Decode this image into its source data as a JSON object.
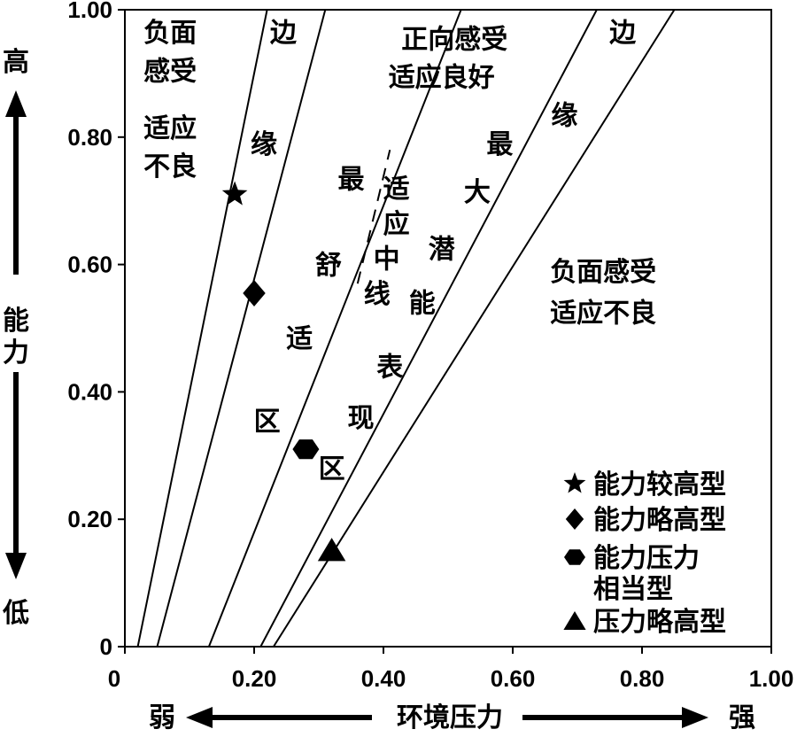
{
  "chart_data": {
    "type": "scatter",
    "xlim": [
      0,
      1.0
    ],
    "ylim": [
      0,
      1.0
    ],
    "x_ticks": [
      "0",
      "0.20",
      "0.40",
      "0.60",
      "0.80",
      "1.00"
    ],
    "y_ticks": [
      "0",
      "0.20",
      "0.40",
      "0.60",
      "0.80",
      "1.00"
    ],
    "ylabel": "能力",
    "y_high_label": "高",
    "y_low_label": "低",
    "xlabel": "环境压力",
    "x_low_label": "弱",
    "x_high_label": "强",
    "grid": false,
    "lines": [
      {
        "x0": 0.02,
        "x1": 0.22
      },
      {
        "x0": 0.05,
        "x1": 0.31
      },
      {
        "x0": 0.13,
        "x1": 0.52
      },
      {
        "x0": 0.21,
        "x1": 0.73
      },
      {
        "x0": 0.23,
        "x1": 0.85
      }
    ],
    "dashed_line": {
      "x0": 0.36,
      "y0": 0.57,
      "x1": 0.41,
      "y1": 0.78
    },
    "series": [
      {
        "name": "能力较高型",
        "marker": "star",
        "x": 0.17,
        "y": 0.71
      },
      {
        "name": "能力略高型",
        "marker": "diamond",
        "x": 0.2,
        "y": 0.555
      },
      {
        "name": "能力压力相当型",
        "marker": "hexagon",
        "x": 0.28,
        "y": 0.31
      },
      {
        "name": "压力略高型",
        "marker": "triangle",
        "x": 0.32,
        "y": 0.15
      }
    ],
    "legend_entries": [
      "能力较高型",
      "能力略高型",
      "能力压力",
      "相当型",
      "压力略高型"
    ],
    "legend_position": "bottom-right",
    "region_labels": [
      {
        "text": "负面",
        "x": 0.07,
        "y": 0.965
      },
      {
        "text": "感受",
        "x": 0.07,
        "y": 0.905
      },
      {
        "text": "适应",
        "x": 0.07,
        "y": 0.815
      },
      {
        "text": "不良",
        "x": 0.07,
        "y": 0.755
      },
      {
        "text": "边",
        "x": 0.245,
        "y": 0.965
      },
      {
        "text": "缘",
        "x": 0.215,
        "y": 0.79
      },
      {
        "text": "适",
        "x": 0.27,
        "y": 0.485
      },
      {
        "text": "区",
        "x": 0.22,
        "y": 0.355
      },
      {
        "text": "正向感受",
        "x": 0.51,
        "y": 0.955
      },
      {
        "text": "适应良好",
        "x": 0.49,
        "y": 0.895
      },
      {
        "text": "最",
        "x": 0.35,
        "y": 0.735
      },
      {
        "text": "舒",
        "x": 0.315,
        "y": 0.6
      },
      {
        "text": "适",
        "x": 0.42,
        "y": 0.72
      },
      {
        "text": "应",
        "x": 0.42,
        "y": 0.665
      },
      {
        "text": "中",
        "x": 0.405,
        "y": 0.61
      },
      {
        "text": "线",
        "x": 0.39,
        "y": 0.555
      },
      {
        "text": "最",
        "x": 0.58,
        "y": 0.79
      },
      {
        "text": "大",
        "x": 0.545,
        "y": 0.715
      },
      {
        "text": "潜",
        "x": 0.49,
        "y": 0.625
      },
      {
        "text": "能",
        "x": 0.46,
        "y": 0.54
      },
      {
        "text": "表",
        "x": 0.41,
        "y": 0.44
      },
      {
        "text": "现",
        "x": 0.365,
        "y": 0.36
      },
      {
        "text": "区",
        "x": 0.32,
        "y": 0.28
      },
      {
        "text": "边",
        "x": 0.77,
        "y": 0.965
      },
      {
        "text": "缘",
        "x": 0.68,
        "y": 0.835
      },
      {
        "text": "负面感受",
        "x": 0.74,
        "y": 0.59
      },
      {
        "text": "适应不良",
        "x": 0.74,
        "y": 0.525
      }
    ]
  }
}
